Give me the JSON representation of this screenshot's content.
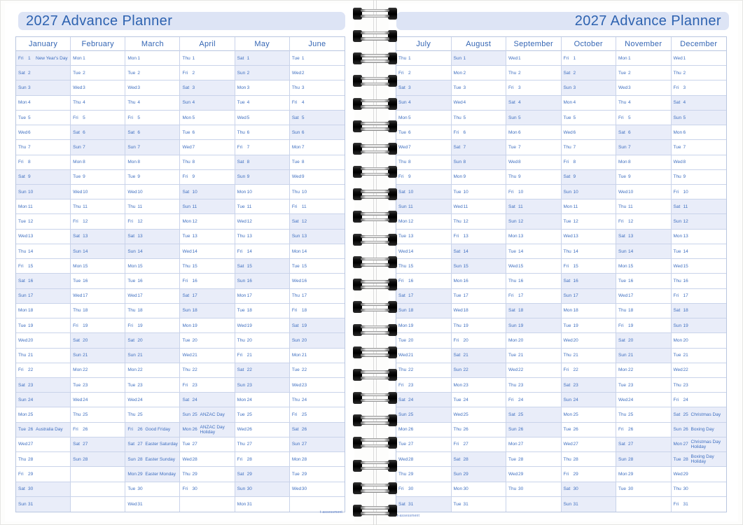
{
  "pages": {
    "left": {
      "title": "2027 Advance Planner",
      "footer_mark": "t-assessment"
    },
    "right": {
      "title": "2027 Advance Planner",
      "footer_mark": "t-assessment"
    }
  },
  "weekend_days": [
    "Sat",
    "Sun"
  ],
  "colors": {
    "accent_blue": "#2d62b0",
    "day_text": "#3f6fc0",
    "banner_bg": "#dde4f5",
    "weekend_bg": "#e9edf9",
    "grid_line": "#c9d3ea"
  },
  "months": [
    {
      "name": "January",
      "days": [
        "Fri",
        "Sat",
        "Sun",
        "Mon",
        "Tue",
        "Wed",
        "Thu",
        "Fri",
        "Sat",
        "Sun",
        "Mon",
        "Tue",
        "Wed",
        "Thu",
        "Fri",
        "Sat",
        "Sun",
        "Mon",
        "Tue",
        "Wed",
        "Thu",
        "Fri",
        "Sat",
        "Sun",
        "Mon",
        "Tue",
        "Wed",
        "Thu",
        "Fri",
        "Sat",
        "Sun"
      ],
      "holidays": {
        "1": "New Year's Day",
        "26": "Australia Day"
      }
    },
    {
      "name": "February",
      "days": [
        "Mon",
        "Tue",
        "Wed",
        "Thu",
        "Fri",
        "Sat",
        "Sun",
        "Mon",
        "Tue",
        "Wed",
        "Thu",
        "Fri",
        "Sat",
        "Sun",
        "Mon",
        "Tue",
        "Wed",
        "Thu",
        "Fri",
        "Sat",
        "Sun",
        "Mon",
        "Tue",
        "Wed",
        "Thu",
        "Fri",
        "Sat",
        "Sun"
      ],
      "holidays": {}
    },
    {
      "name": "March",
      "days": [
        "Mon",
        "Tue",
        "Wed",
        "Thu",
        "Fri",
        "Sat",
        "Sun",
        "Mon",
        "Tue",
        "Wed",
        "Thu",
        "Fri",
        "Sat",
        "Sun",
        "Mon",
        "Tue",
        "Wed",
        "Thu",
        "Fri",
        "Sat",
        "Sun",
        "Mon",
        "Tue",
        "Wed",
        "Thu",
        "Fri",
        "Sat",
        "Sun",
        "Mon",
        "Tue",
        "Wed"
      ],
      "holidays": {
        "26": "Good Friday",
        "27": "Easter Saturday",
        "28": "Easter Sunday",
        "29": "Easter Monday"
      }
    },
    {
      "name": "April",
      "days": [
        "Thu",
        "Fri",
        "Sat",
        "Sun",
        "Mon",
        "Tue",
        "Wed",
        "Thu",
        "Fri",
        "Sat",
        "Sun",
        "Mon",
        "Tue",
        "Wed",
        "Thu",
        "Fri",
        "Sat",
        "Sun",
        "Mon",
        "Tue",
        "Wed",
        "Thu",
        "Fri",
        "Sat",
        "Sun",
        "Mon",
        "Tue",
        "Wed",
        "Thu",
        "Fri"
      ],
      "holidays": {
        "25": "ANZAC Day",
        "26": "ANZAC Day Holiday"
      }
    },
    {
      "name": "May",
      "days": [
        "Sat",
        "Sun",
        "Mon",
        "Tue",
        "Wed",
        "Thu",
        "Fri",
        "Sat",
        "Sun",
        "Mon",
        "Tue",
        "Wed",
        "Thu",
        "Fri",
        "Sat",
        "Sun",
        "Mon",
        "Tue",
        "Wed",
        "Thu",
        "Fri",
        "Sat",
        "Sun",
        "Mon",
        "Tue",
        "Wed",
        "Thu",
        "Fri",
        "Sat",
        "Sun",
        "Mon"
      ],
      "holidays": {}
    },
    {
      "name": "June",
      "days": [
        "Tue",
        "Wed",
        "Thu",
        "Fri",
        "Sat",
        "Sun",
        "Mon",
        "Tue",
        "Wed",
        "Thu",
        "Fri",
        "Sat",
        "Sun",
        "Mon",
        "Tue",
        "Wed",
        "Thu",
        "Fri",
        "Sat",
        "Sun",
        "Mon",
        "Tue",
        "Wed",
        "Thu",
        "Fri",
        "Sat",
        "Sun",
        "Mon",
        "Tue",
        "Wed"
      ],
      "holidays": {}
    },
    {
      "name": "July",
      "days": [
        "Thu",
        "Fri",
        "Sat",
        "Sun",
        "Mon",
        "Tue",
        "Wed",
        "Thu",
        "Fri",
        "Sat",
        "Sun",
        "Mon",
        "Tue",
        "Wed",
        "Thu",
        "Fri",
        "Sat",
        "Sun",
        "Mon",
        "Tue",
        "Wed",
        "Thu",
        "Fri",
        "Sat",
        "Sun",
        "Mon",
        "Tue",
        "Wed",
        "Thu",
        "Fri",
        "Sat"
      ],
      "holidays": {}
    },
    {
      "name": "August",
      "days": [
        "Sun",
        "Mon",
        "Tue",
        "Wed",
        "Thu",
        "Fri",
        "Sat",
        "Sun",
        "Mon",
        "Tue",
        "Wed",
        "Thu",
        "Fri",
        "Sat",
        "Sun",
        "Mon",
        "Tue",
        "Wed",
        "Thu",
        "Fri",
        "Sat",
        "Sun",
        "Mon",
        "Tue",
        "Wed",
        "Thu",
        "Fri",
        "Sat",
        "Sun",
        "Mon",
        "Tue"
      ],
      "holidays": {}
    },
    {
      "name": "September",
      "days": [
        "Wed",
        "Thu",
        "Fri",
        "Sat",
        "Sun",
        "Mon",
        "Tue",
        "Wed",
        "Thu",
        "Fri",
        "Sat",
        "Sun",
        "Mon",
        "Tue",
        "Wed",
        "Thu",
        "Fri",
        "Sat",
        "Sun",
        "Mon",
        "Tue",
        "Wed",
        "Thu",
        "Fri",
        "Sat",
        "Sun",
        "Mon",
        "Tue",
        "Wed",
        "Thu"
      ],
      "holidays": {}
    },
    {
      "name": "October",
      "days": [
        "Fri",
        "Sat",
        "Sun",
        "Mon",
        "Tue",
        "Wed",
        "Thu",
        "Fri",
        "Sat",
        "Sun",
        "Mon",
        "Tue",
        "Wed",
        "Thu",
        "Fri",
        "Sat",
        "Sun",
        "Mon",
        "Tue",
        "Wed",
        "Thu",
        "Fri",
        "Sat",
        "Sun",
        "Mon",
        "Tue",
        "Wed",
        "Thu",
        "Fri",
        "Sat",
        "Sun"
      ],
      "holidays": {}
    },
    {
      "name": "November",
      "days": [
        "Mon",
        "Tue",
        "Wed",
        "Thu",
        "Fri",
        "Sat",
        "Sun",
        "Mon",
        "Tue",
        "Wed",
        "Thu",
        "Fri",
        "Sat",
        "Sun",
        "Mon",
        "Tue",
        "Wed",
        "Thu",
        "Fri",
        "Sat",
        "Sun",
        "Mon",
        "Tue",
        "Wed",
        "Thu",
        "Fri",
        "Sat",
        "Sun",
        "Mon",
        "Tue"
      ],
      "holidays": {}
    },
    {
      "name": "December",
      "days": [
        "Wed",
        "Thu",
        "Fri",
        "Sat",
        "Sun",
        "Mon",
        "Tue",
        "Wed",
        "Thu",
        "Fri",
        "Sat",
        "Sun",
        "Mon",
        "Tue",
        "Wed",
        "Thu",
        "Fri",
        "Sat",
        "Sun",
        "Mon",
        "Tue",
        "Wed",
        "Thu",
        "Fri",
        "Sat",
        "Sun",
        "Mon",
        "Tue",
        "Wed",
        "Thu",
        "Fri"
      ],
      "holidays": {
        "25": "Christmas Day",
        "26": "Boxing Day",
        "27": "Christmas Day Holiday",
        "28": "Boxing Day Holiday"
      }
    }
  ]
}
